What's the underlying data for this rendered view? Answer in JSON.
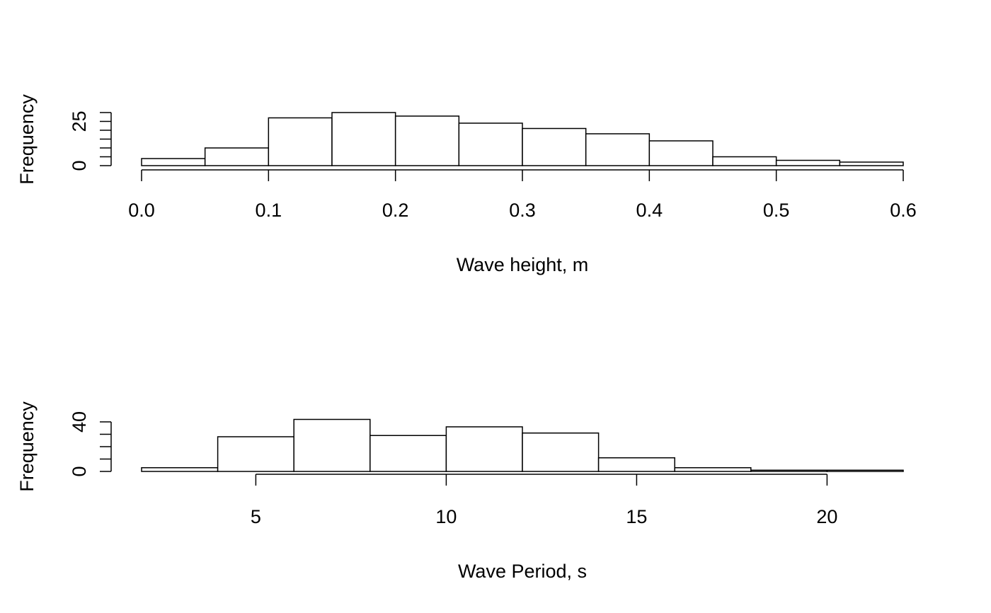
{
  "chart_data": [
    {
      "type": "bar",
      "subtype": "histogram",
      "xlabel": "Wave height, m",
      "ylabel": "Frequency",
      "xlim": [
        0,
        0.6
      ],
      "ylim": [
        0,
        33
      ],
      "x_ticks": [
        0.0,
        0.1,
        0.2,
        0.3,
        0.4,
        0.5,
        0.6
      ],
      "x_tick_labels": [
        "0.0",
        "0.1",
        "0.2",
        "0.3",
        "0.4",
        "0.5",
        "0.6"
      ],
      "y_ticks": [
        0,
        25
      ],
      "y_tick_labels": [
        "0",
        "25"
      ],
      "y_minor_ticks": [
        0,
        5,
        10,
        15,
        20,
        25,
        30
      ],
      "bin_edges": [
        0.0,
        0.05,
        0.1,
        0.15,
        0.2,
        0.25,
        0.3,
        0.35,
        0.4,
        0.45,
        0.5,
        0.55,
        0.6
      ],
      "values": [
        4,
        10,
        27,
        30,
        28,
        24,
        21,
        18,
        14,
        5,
        3,
        2
      ]
    },
    {
      "type": "bar",
      "subtype": "histogram",
      "xlabel": "Wave Period, s",
      "ylabel": "Frequency",
      "xlim": [
        2,
        22
      ],
      "ylim": [
        0,
        48
      ],
      "x_ticks": [
        5,
        10,
        15,
        20
      ],
      "x_tick_labels": [
        "5",
        "10",
        "15",
        "20"
      ],
      "y_ticks": [
        0,
        40
      ],
      "y_tick_labels": [
        "0",
        "40"
      ],
      "y_minor_ticks": [
        0,
        10,
        20,
        30,
        40
      ],
      "bin_edges": [
        2,
        4,
        6,
        8,
        10,
        12,
        14,
        16,
        18,
        20,
        22
      ],
      "values": [
        3,
        28,
        42,
        29,
        36,
        31,
        11,
        3,
        1,
        1
      ]
    }
  ]
}
